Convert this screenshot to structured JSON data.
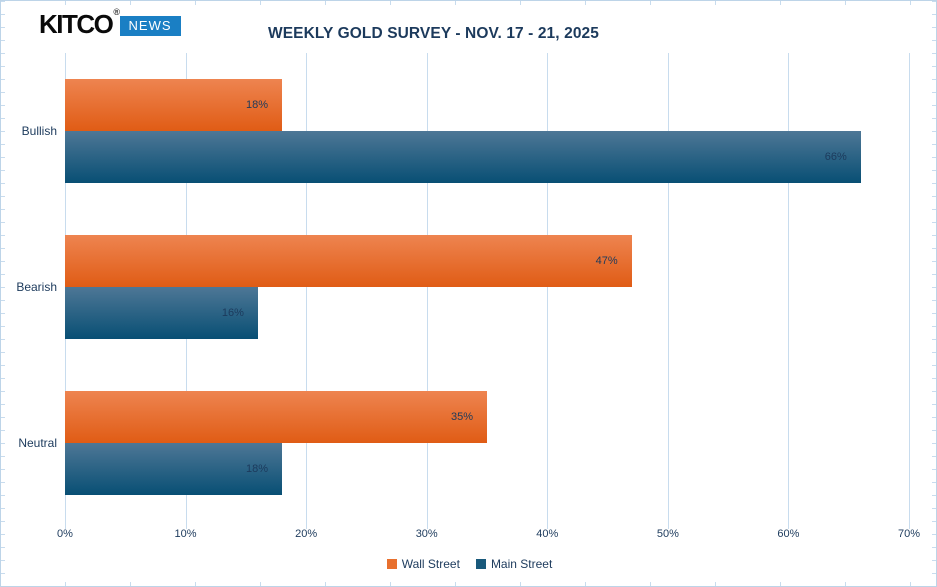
{
  "logo": {
    "brand": "KITCO",
    "registered": "®",
    "news_label": "NEWS",
    "news_bg": "#1a7fc4"
  },
  "title": "WEEKLY GOLD SURVEY - NOV. 17 - 21, 2025",
  "chart_data": {
    "type": "bar",
    "orientation": "horizontal",
    "title": "WEEKLY GOLD SURVEY - NOV. 17 - 21, 2025",
    "categories": [
      "Bullish",
      "Bearish",
      "Neutral"
    ],
    "series": [
      {
        "name": "Wall Street",
        "values": [
          18,
          47,
          35
        ],
        "color_top": "#ee8450",
        "color_bottom": "#e05c15",
        "legend_color": "#e8702e"
      },
      {
        "name": "Main Street",
        "values": [
          66,
          16,
          18
        ],
        "color_top": "#4e7796",
        "color_bottom": "#084f74",
        "legend_color": "#19597b"
      }
    ],
    "value_labels": [
      [
        "18%",
        "47%",
        "35%"
      ],
      [
        "66%",
        "16%",
        "18%"
      ]
    ],
    "value_suffix": "%",
    "x_tick_values": [
      0,
      10,
      20,
      30,
      40,
      50,
      60,
      70
    ],
    "x_tick_labels": [
      "0%",
      "10%",
      "20%",
      "30%",
      "40%",
      "50%",
      "60%",
      "70%"
    ],
    "xlim": [
      0,
      70
    ],
    "grid": true,
    "legend_position": "bottom-center",
    "text_color": "#1c3a5c",
    "grid_color": "#c8dcee"
  }
}
